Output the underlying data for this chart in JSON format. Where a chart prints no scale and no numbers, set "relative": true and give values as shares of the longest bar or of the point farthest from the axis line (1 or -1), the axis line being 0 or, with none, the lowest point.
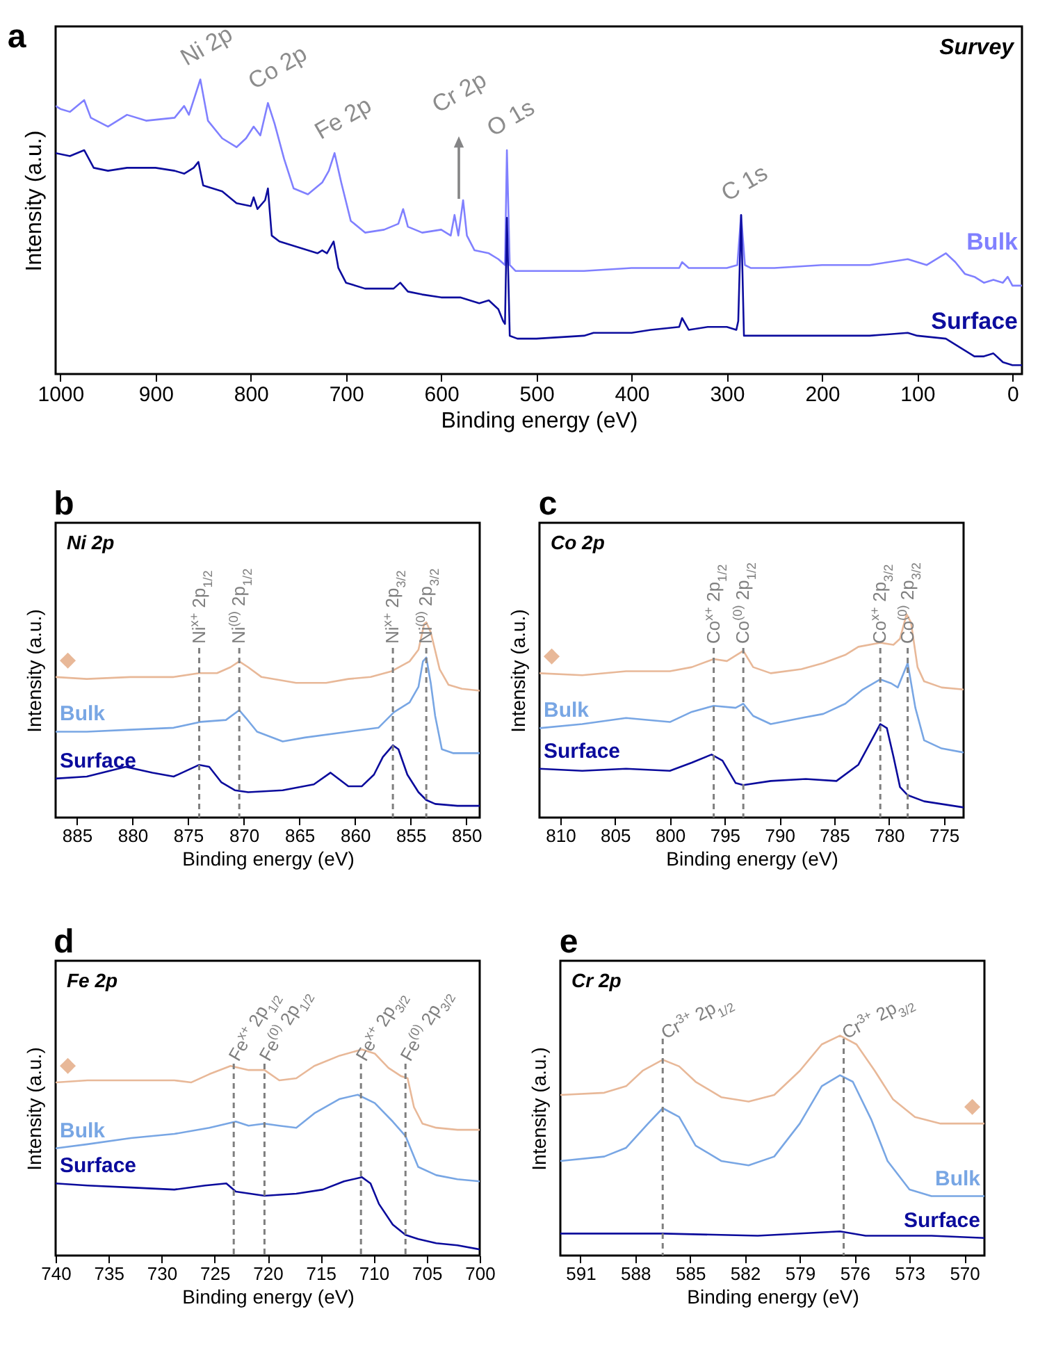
{
  "chart_data": [
    {
      "type": "line",
      "title": "a",
      "subtitle": "Survey",
      "xlabel": "Binding energy (eV)",
      "ylabel": "Intensity (a.u.)",
      "relative": true,
      "xlim": [
        1005,
        -10
      ],
      "xticks": [
        1000,
        900,
        800,
        700,
        600,
        500,
        400,
        300,
        200,
        100,
        0
      ],
      "series": [
        {
          "name": "Bulk",
          "color": "#8080ff",
          "x": [
            1005,
            1000,
            990,
            975,
            968,
            950,
            930,
            910,
            880,
            870,
            865,
            853,
            845,
            830,
            815,
            805,
            797,
            790,
            782,
            775,
            765,
            755,
            740,
            725,
            718,
            712,
            705,
            695,
            680,
            660,
            645,
            640,
            635,
            620,
            600,
            590,
            586,
            582,
            577,
            573,
            565,
            550,
            540,
            533,
            531,
            528,
            522,
            500,
            450,
            400,
            350,
            347,
            340,
            300,
            289,
            285,
            281,
            275,
            250,
            200,
            150,
            110,
            100,
            90,
            70,
            60,
            50,
            40,
            30,
            20,
            10,
            5,
            0,
            -10
          ],
          "values": [
            0.91,
            0.9,
            0.89,
            0.93,
            0.87,
            0.84,
            0.88,
            0.86,
            0.87,
            0.91,
            0.88,
            1.0,
            0.86,
            0.8,
            0.77,
            0.8,
            0.84,
            0.81,
            0.92,
            0.85,
            0.73,
            0.63,
            0.61,
            0.65,
            0.69,
            0.75,
            0.65,
            0.52,
            0.48,
            0.49,
            0.51,
            0.56,
            0.5,
            0.48,
            0.49,
            0.47,
            0.54,
            0.47,
            0.59,
            0.47,
            0.42,
            0.41,
            0.39,
            0.37,
            0.76,
            0.37,
            0.35,
            0.35,
            0.35,
            0.36,
            0.36,
            0.38,
            0.36,
            0.36,
            0.37,
            0.54,
            0.37,
            0.36,
            0.36,
            0.37,
            0.37,
            0.39,
            0.38,
            0.37,
            0.41,
            0.38,
            0.34,
            0.33,
            0.31,
            0.32,
            0.31,
            0.33,
            0.3,
            0.3
          ]
        },
        {
          "name": "Surface",
          "color": "#0d0d9e",
          "x": [
            1005,
            990,
            975,
            965,
            950,
            930,
            900,
            880,
            870,
            860,
            855,
            850,
            830,
            815,
            800,
            797,
            793,
            785,
            782,
            778,
            770,
            740,
            730,
            725,
            720,
            713,
            708,
            700,
            680,
            650,
            643,
            635,
            620,
            600,
            580,
            560,
            550,
            540,
            535,
            533,
            531,
            528,
            520,
            500,
            450,
            440,
            400,
            380,
            350,
            347,
            340,
            320,
            300,
            290,
            288,
            285,
            282,
            250,
            200,
            150,
            110,
            100,
            70,
            65,
            55,
            40,
            30,
            20,
            10,
            0,
            -10
          ],
          "values": [
            0.75,
            0.74,
            0.76,
            0.7,
            0.69,
            0.7,
            0.7,
            0.69,
            0.68,
            0.7,
            0.72,
            0.64,
            0.62,
            0.58,
            0.57,
            0.6,
            0.56,
            0.59,
            0.63,
            0.47,
            0.45,
            0.42,
            0.41,
            0.42,
            0.41,
            0.45,
            0.36,
            0.31,
            0.29,
            0.29,
            0.31,
            0.28,
            0.27,
            0.26,
            0.26,
            0.24,
            0.25,
            0.22,
            0.18,
            0.17,
            0.53,
            0.13,
            0.12,
            0.12,
            0.13,
            0.14,
            0.14,
            0.15,
            0.16,
            0.19,
            0.15,
            0.16,
            0.16,
            0.15,
            0.18,
            0.54,
            0.13,
            0.13,
            0.13,
            0.13,
            0.14,
            0.13,
            0.12,
            0.11,
            0.09,
            0.06,
            0.06,
            0.07,
            0.04,
            0.03,
            0.03
          ]
        }
      ],
      "annotations": [
        {
          "text": "Ni 2p",
          "x": 853,
          "y": 1.0
        },
        {
          "text": "Co 2p",
          "x": 782,
          "y": 0.92
        },
        {
          "text": "Fe 2p",
          "x": 712,
          "y": 0.75
        },
        "Cr 2p",
        {
          "text": "O 1s",
          "x": 531,
          "y": 0.76
        },
        {
          "text": "C 1s",
          "x": 285,
          "y": 0.54
        }
      ]
    },
    {
      "type": "line",
      "title": "b",
      "subtitle": "Ni 2p",
      "xlabel": "Binding energy (eV)",
      "ylabel": "Intensity (a.u.)",
      "relative": true,
      "xlim": [
        886.9,
        848.8
      ],
      "xticks": [
        885,
        880,
        875,
        870,
        865,
        860,
        855,
        850
      ],
      "series": [
        {
          "name": "◆",
          "color": "#e8b898",
          "x": [
            886.9,
            884.1,
            880.2,
            876.3,
            874.0,
            872.4,
            871.2,
            870.4,
            869.6,
            868.4,
            865.3,
            862.6,
            860.6,
            858.6,
            856.7,
            855.1,
            854.3,
            853.8,
            853.6,
            853.2,
            852.4,
            851.6,
            850.4,
            848.8
          ],
          "values": [
            0.72,
            0.71,
            0.72,
            0.72,
            0.74,
            0.74,
            0.77,
            0.8,
            0.77,
            0.72,
            0.69,
            0.69,
            0.71,
            0.72,
            0.75,
            0.8,
            0.86,
            0.99,
            1.0,
            0.95,
            0.76,
            0.68,
            0.66,
            0.65
          ]
        },
        {
          "name": "Bulk",
          "color": "#78a6e4",
          "x": [
            886.9,
            884.1,
            880.2,
            876.3,
            873.9,
            871.6,
            870.4,
            869.8,
            868.8,
            866.5,
            864.5,
            860.6,
            857.9,
            856.5,
            855.1,
            854.3,
            853.9,
            853.6,
            853.2,
            852.8,
            852.2,
            851.2,
            848.8
          ],
          "values": [
            0.44,
            0.44,
            0.45,
            0.46,
            0.49,
            0.5,
            0.55,
            0.51,
            0.44,
            0.39,
            0.41,
            0.44,
            0.46,
            0.54,
            0.59,
            0.67,
            0.8,
            0.82,
            0.69,
            0.52,
            0.35,
            0.33,
            0.33
          ]
        },
        {
          "name": "Surface",
          "color": "#0b0b9c",
          "x": [
            886.9,
            884.1,
            880.6,
            878.2,
            876.3,
            874.0,
            873.1,
            872.0,
            870.8,
            869.6,
            866.5,
            863.7,
            862.2,
            860.6,
            859.4,
            858.3,
            857.5,
            856.6,
            856.1,
            855.3,
            854.3,
            853.6,
            852.8,
            850.8,
            848.8
          ],
          "values": [
            0.2,
            0.21,
            0.26,
            0.23,
            0.21,
            0.27,
            0.26,
            0.18,
            0.14,
            0.13,
            0.14,
            0.17,
            0.23,
            0.16,
            0.16,
            0.22,
            0.31,
            0.37,
            0.35,
            0.22,
            0.13,
            0.09,
            0.07,
            0.06,
            0.06
          ]
        }
      ],
      "ref_lines": [
        {
          "axis": "x",
          "value": 874.0,
          "label": "Ni$^{x+}$ 2p$_{1/2}$",
          "color": "#7f7f7f",
          "line_style": "dashed"
        },
        {
          "axis": "x",
          "value": 870.4,
          "label": "Ni$^{(0)}$ 2p$_{1/2}$",
          "color": "#7f7f7f",
          "line_style": "dashed"
        },
        {
          "axis": "x",
          "value": 856.6,
          "label": "Ni$^{x+}$ 2p$_{3/2}$",
          "color": "#7f7f7f",
          "line_style": "dashed"
        },
        {
          "axis": "x",
          "value": 853.6,
          "label": "Ni$^{(0)}$ 2p$_{3/2}$",
          "color": "#7f7f7f",
          "line_style": "dashed"
        }
      ]
    },
    {
      "type": "line",
      "title": "c",
      "subtitle": "Co 2p",
      "xlabel": "Binding energy (eV)",
      "ylabel": "Intensity (a.u.)",
      "relative": true,
      "xlim": [
        811.9,
        773.2
      ],
      "xticks": [
        810,
        805,
        800,
        795,
        790,
        785,
        780,
        775
      ],
      "series": [
        {
          "name": "◆",
          "color": "#e8b898",
          "x": [
            811.9,
            808,
            804,
            800,
            798,
            796,
            794.8,
            793.3,
            792.4,
            790.8,
            788,
            786,
            784,
            782.8,
            780.8,
            779.6,
            779,
            778.4,
            778,
            777.4,
            776.8,
            775.2,
            773.2
          ],
          "values": [
            0.71,
            0.7,
            0.72,
            0.72,
            0.74,
            0.78,
            0.77,
            0.82,
            0.74,
            0.71,
            0.73,
            0.76,
            0.8,
            0.84,
            0.86,
            0.85,
            0.88,
            1.0,
            0.96,
            0.74,
            0.67,
            0.64,
            0.63
          ]
        },
        {
          "name": "Bulk",
          "color": "#78a6e4",
          "x": [
            811.9,
            808,
            804,
            800,
            798,
            796,
            794,
            793.3,
            792.4,
            790.8,
            788,
            786,
            784,
            782.4,
            780.8,
            779.8,
            779.2,
            778.3,
            777.6,
            776.8,
            775.2,
            773.2
          ],
          "values": [
            0.44,
            0.46,
            0.49,
            0.47,
            0.52,
            0.55,
            0.54,
            0.56,
            0.5,
            0.46,
            0.49,
            0.51,
            0.56,
            0.63,
            0.68,
            0.66,
            0.64,
            0.76,
            0.54,
            0.38,
            0.34,
            0.32
          ]
        },
        {
          "name": "Surface",
          "color": "#0b0b9c",
          "x": [
            811.9,
            808,
            804,
            800,
            798,
            796.2,
            795.2,
            794,
            793.3,
            790.8,
            787.6,
            784.8,
            782.8,
            781.6,
            780.8,
            780.2,
            779.6,
            779,
            778.3,
            776.8,
            773.2
          ],
          "values": [
            0.24,
            0.23,
            0.24,
            0.23,
            0.27,
            0.31,
            0.28,
            0.17,
            0.16,
            0.18,
            0.19,
            0.18,
            0.26,
            0.38,
            0.46,
            0.44,
            0.3,
            0.15,
            0.11,
            0.08,
            0.05
          ]
        }
      ],
      "ref_lines": [
        {
          "axis": "x",
          "value": 796.0,
          "label": "Co$^{x+}$ 2p$_{1/2}$",
          "color": "#7f7f7f",
          "line_style": "dashed"
        },
        {
          "axis": "x",
          "value": 793.3,
          "label": "Co$^{(0)}$ 2p$_{1/2}$",
          "color": "#7f7f7f",
          "line_style": "dashed"
        },
        {
          "axis": "x",
          "value": 780.8,
          "label": "Co$^{x+}$ 2p$_{3/2}$",
          "color": "#7f7f7f",
          "line_style": "dashed"
        },
        {
          "axis": "x",
          "value": 778.3,
          "label": "Co$^{(0)}$ 2p$_{3/2}$",
          "color": "#7f7f7f",
          "line_style": "dashed"
        }
      ]
    },
    {
      "type": "line",
      "title": "d",
      "subtitle": "Fe 2p",
      "xlabel": "Binding energy (eV)",
      "ylabel": "Intensity (a.u.)",
      "relative": true,
      "xlim": [
        740,
        700
      ],
      "xticks": [
        740,
        735,
        730,
        725,
        720,
        715,
        710,
        705,
        700
      ],
      "series": [
        {
          "name": "◆",
          "color": "#e8b898",
          "x": [
            740,
            737,
            732.9,
            728.8,
            727.2,
            725.5,
            723.5,
            721.8,
            720.3,
            718.9,
            717.3,
            715.6,
            713.2,
            711.1,
            709.9,
            708.6,
            707.4,
            706.8,
            706.2,
            705.4,
            704.1,
            702.1,
            700
          ],
          "values": [
            0.84,
            0.85,
            0.85,
            0.85,
            0.84,
            0.88,
            0.92,
            0.9,
            0.9,
            0.85,
            0.86,
            0.92,
            0.97,
            1.0,
            0.98,
            0.91,
            0.87,
            0.86,
            0.72,
            0.64,
            0.62,
            0.61,
            0.61
          ]
        },
        {
          "name": "Bulk",
          "color": "#78a6e4",
          "x": [
            740,
            737,
            732.9,
            728.8,
            725.5,
            723,
            721.8,
            720.3,
            718.9,
            717.3,
            715.6,
            713.2,
            711.5,
            709.9,
            708.2,
            707,
            705.8,
            704.1,
            702.1,
            700
          ],
          "values": [
            0.52,
            0.54,
            0.57,
            0.59,
            0.62,
            0.65,
            0.63,
            0.64,
            0.63,
            0.62,
            0.69,
            0.76,
            0.78,
            0.74,
            0.65,
            0.58,
            0.43,
            0.39,
            0.37,
            0.36
          ]
        },
        {
          "name": "Surface",
          "color": "#0b0b9c",
          "x": [
            740,
            737,
            732.9,
            728.8,
            725.9,
            723.9,
            723,
            720.3,
            717.3,
            714.8,
            712.8,
            711.1,
            710.3,
            709.5,
            708.2,
            707,
            705.8,
            704.1,
            702.1,
            700
          ],
          "values": [
            0.35,
            0.34,
            0.33,
            0.32,
            0.34,
            0.35,
            0.31,
            0.29,
            0.3,
            0.32,
            0.36,
            0.38,
            0.35,
            0.25,
            0.15,
            0.1,
            0.08,
            0.06,
            0.05,
            0.03
          ]
        }
      ],
      "ref_lines": [
        {
          "axis": "x",
          "value": 723.2,
          "label": "Fe$^{x+}$ 2p$_{1/2}$",
          "color": "#7f7f7f",
          "line_style": "dashed"
        },
        {
          "axis": "x",
          "value": 720.3,
          "label": "Fe$^{(0)}$ 2p$_{1/2}$",
          "color": "#7f7f7f",
          "line_style": "dashed"
        },
        {
          "axis": "x",
          "value": 711.2,
          "label": "Fe$^{x+}$ 2p$_{3/2}$",
          "color": "#7f7f7f",
          "line_style": "dashed"
        },
        {
          "axis": "x",
          "value": 707.0,
          "label": "Fe$^{(0)}$ 2p$_{3/2}$",
          "color": "#7f7f7f",
          "line_style": "dashed"
        }
      ]
    },
    {
      "type": "line",
      "title": "e",
      "subtitle": "Cr 2p",
      "xlabel": "Binding energy (eV)",
      "ylabel": "Intensity (a.u.)",
      "relative": true,
      "xlim": [
        592.1,
        568.9
      ],
      "xticks": [
        591,
        588,
        585,
        582,
        579,
        576,
        573,
        570
      ],
      "series": [
        {
          "name": "◆",
          "color": "#e8b898",
          "x": [
            592.1,
            589.7,
            588.5,
            587.6,
            586.5,
            585.6,
            584.7,
            583.3,
            581.8,
            580.4,
            579,
            577.8,
            576.8,
            575.9,
            574.9,
            573.9,
            572.7,
            571.3,
            570,
            568.9
          ],
          "values": [
            0.73,
            0.74,
            0.77,
            0.84,
            0.89,
            0.86,
            0.79,
            0.72,
            0.7,
            0.73,
            0.84,
            0.96,
            1.0,
            0.96,
            0.84,
            0.71,
            0.63,
            0.6,
            0.6,
            0.6
          ]
        },
        {
          "name": "Bulk",
          "color": "#78a6e4",
          "x": [
            592.1,
            589.7,
            588.5,
            587.3,
            586.5,
            585.6,
            584.7,
            583.3,
            581.8,
            580.4,
            579,
            577.8,
            576.8,
            576.1,
            575.1,
            574.2,
            573,
            571.8,
            570.4,
            568.9
          ],
          "values": [
            0.43,
            0.45,
            0.49,
            0.6,
            0.67,
            0.63,
            0.5,
            0.43,
            0.41,
            0.45,
            0.6,
            0.77,
            0.82,
            0.79,
            0.62,
            0.43,
            0.3,
            0.27,
            0.27,
            0.27
          ]
        },
        {
          "name": "Surface",
          "color": "#0b0b9c",
          "x": [
            592.1,
            586.5,
            581.3,
            576.8,
            575.4,
            571.8,
            568.9
          ],
          "values": [
            0.1,
            0.1,
            0.09,
            0.11,
            0.09,
            0.09,
            0.08
          ]
        }
      ],
      "ref_lines": [
        {
          "axis": "x",
          "value": 586.5,
          "label": "Cr$^{3+}$ 2p$_{1/2}$",
          "color": "#7f7f7f",
          "line_style": "dashed"
        },
        {
          "axis": "x",
          "value": 576.6,
          "label": "Cr$^{3+}$ 2p$_{3/2}$",
          "color": "#7f7f7f",
          "line_style": "dashed"
        }
      ]
    }
  ]
}
